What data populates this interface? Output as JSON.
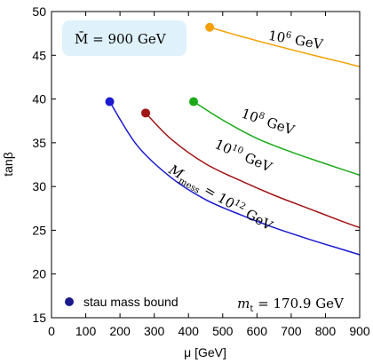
{
  "chart_data": {
    "type": "line",
    "xlabel": "μ [GeV]",
    "ylabel": "tanβ",
    "xlim": [
      0,
      900
    ],
    "ylim": [
      15,
      50
    ],
    "xticks": [
      "0",
      "100",
      "200",
      "300",
      "400",
      "500",
      "600",
      "700",
      "800",
      "900"
    ],
    "yticks": [
      "15",
      "20",
      "25",
      "30",
      "35",
      "40",
      "45",
      "50"
    ],
    "grid": false,
    "annotations": {
      "mbar": "M̄ = 900 GeV",
      "mt": "m",
      "mt_sub": "t",
      "mt_value": " = 170.9 GeV",
      "mmess": "M",
      "mmess_sub": "mess",
      "mmess_value": " = 10",
      "mmess_exp": "12",
      "mmess_unit": " GeV"
    },
    "legend": {
      "label": "stau mass bound",
      "color": "#1a1a8c",
      "position": "bottom-left"
    },
    "series": [
      {
        "label_base": "10",
        "label_exp": "6",
        "label_unit": " GeV",
        "color": "#f5a000",
        "x": [
          462,
          550,
          650,
          750,
          850,
          900
        ],
        "y": [
          48.2,
          47.2,
          46.15,
          45.15,
          44.2,
          43.7
        ]
      },
      {
        "label_base": "10",
        "label_exp": "8",
        "label_unit": " GeV",
        "color": "#1aaa1a",
        "x": [
          415,
          500,
          600,
          700,
          800,
          900
        ],
        "y": [
          39.7,
          37.6,
          35.5,
          33.95,
          32.6,
          31.3
        ]
      },
      {
        "label_base": "10",
        "label_exp": "10",
        "label_unit": " GeV",
        "color": "#a01515",
        "x": [
          275,
          350,
          450,
          550,
          650,
          750,
          850,
          900
        ],
        "y": [
          38.4,
          35.4,
          32.6,
          30.7,
          29.0,
          27.5,
          26.0,
          25.3
        ]
      },
      {
        "label_base": "",
        "label_exp": "",
        "label_unit": "",
        "color": "#1a1ad0",
        "x": [
          170,
          250,
          350,
          450,
          550,
          650,
          750,
          850,
          900
        ],
        "y": [
          39.7,
          34.7,
          31.0,
          28.5,
          26.8,
          25.3,
          24.0,
          22.8,
          22.2
        ]
      }
    ],
    "endpoints_series": "stau mass bound"
  }
}
